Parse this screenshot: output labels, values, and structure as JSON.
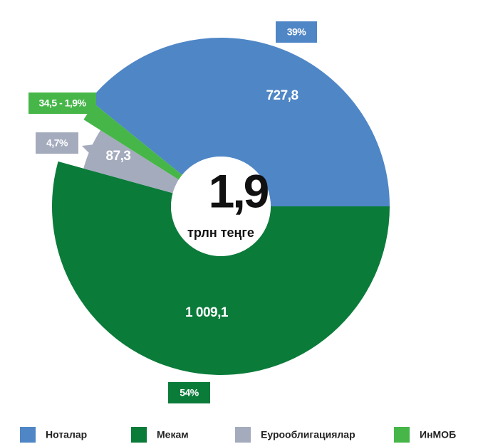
{
  "chart_data": {
    "type": "donut",
    "center_label": "1,9",
    "center_unit": "трлн теңге",
    "categories": [
      "Ноталар",
      "Мекам",
      "Еурооблигациялар",
      "ИнМОБ"
    ],
    "values": [
      727.8,
      1009.1,
      87.3,
      34.5
    ],
    "value_labels": [
      "727,8",
      "1 009,1",
      "87,3",
      "34,5 - 1,9%"
    ],
    "percents": [
      39,
      54,
      4.7,
      1.9
    ],
    "percent_labels": [
      "39%",
      "54%",
      "4,7%",
      null
    ],
    "colors": [
      "#4f86c6",
      "#0b7b3a",
      "#a4abbd",
      "#46b649"
    ],
    "legend": "bottom"
  }
}
